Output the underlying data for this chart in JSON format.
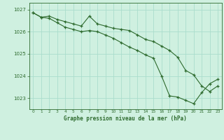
{
  "title": "Graphe pression niveau de la mer (hPa)",
  "bg_color": "#cff0e0",
  "grid_color": "#aaddcc",
  "line_color": "#2d6a2d",
  "xlim": [
    -0.5,
    23.5
  ],
  "ylim": [
    1022.5,
    1027.3
  ],
  "yticks": [
    1023,
    1024,
    1025,
    1026,
    1027
  ],
  "xticks": [
    0,
    1,
    2,
    3,
    4,
    5,
    6,
    7,
    8,
    9,
    10,
    11,
    12,
    13,
    14,
    15,
    16,
    17,
    18,
    19,
    20,
    21,
    22,
    23
  ],
  "line1_x": [
    0,
    1,
    2,
    3,
    4,
    5,
    6,
    7,
    8,
    9,
    10,
    11,
    12,
    13,
    14,
    15,
    16,
    17,
    18,
    19,
    20,
    21,
    22,
    23
  ],
  "line1_y": [
    1026.85,
    1026.65,
    1026.7,
    1026.55,
    1026.45,
    1026.35,
    1026.25,
    1026.7,
    1026.35,
    1026.25,
    1026.15,
    1026.1,
    1026.05,
    1025.85,
    1025.65,
    1025.55,
    1025.35,
    1025.15,
    1024.85,
    1024.25,
    1024.05,
    1023.55,
    1023.3,
    1023.55
  ],
  "line2_x": [
    0,
    1,
    2,
    3,
    4,
    5,
    6,
    7,
    8,
    9,
    10,
    11,
    12,
    13,
    14,
    15,
    16,
    17,
    18,
    19,
    20,
    21,
    22,
    23
  ],
  "line2_y": [
    1026.85,
    1026.65,
    1026.6,
    1026.4,
    1026.2,
    1026.1,
    1026.0,
    1026.05,
    1026.0,
    1025.85,
    1025.7,
    1025.5,
    1025.3,
    1025.15,
    1024.95,
    1024.8,
    1024.0,
    1023.1,
    1023.05,
    1022.9,
    1022.75,
    1023.25,
    1023.65,
    1023.85
  ]
}
